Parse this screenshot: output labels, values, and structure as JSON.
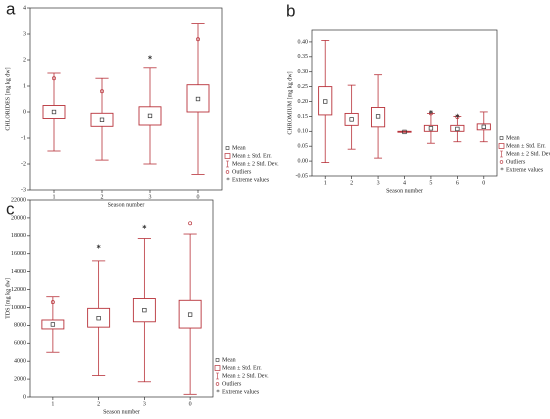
{
  "chart_data": [
    {
      "type": "box",
      "panel": "a",
      "ylabel": "CHLORIDES [mg kg dw]",
      "xlabel": "Season number",
      "categories": [
        "1",
        "2",
        "3",
        "0"
      ],
      "means": [
        0.0,
        -0.3,
        -0.15,
        0.5
      ],
      "box_low": [
        -0.25,
        -0.55,
        -0.5,
        0.0
      ],
      "box_high": [
        0.25,
        -0.05,
        0.2,
        1.05
      ],
      "whisker_low": [
        -1.5,
        -1.85,
        -2.0,
        -2.4
      ],
      "whisker_high": [
        1.5,
        1.3,
        1.7,
        3.4
      ],
      "outliers": [
        1.3,
        0.8,
        null,
        2.8
      ],
      "extremes": [
        null,
        null,
        2.1,
        null
      ],
      "ylim": [
        -3,
        4
      ],
      "yticks": [
        -3,
        -2,
        -1,
        0,
        1,
        2,
        3,
        4
      ],
      "color": "#b8323a",
      "legend": [
        "Mean",
        "Mean ± Std. Err.",
        "Mean ± 2 Std. Dev.",
        "Outliers",
        "Extreme values"
      ]
    },
    {
      "type": "box",
      "panel": "b",
      "ylabel": "CHROMIUM [mg kg dw]",
      "xlabel": "Season number",
      "categories": [
        "1",
        "2",
        "3",
        "4",
        "5",
        "6",
        "0"
      ],
      "means": [
        0.2,
        0.14,
        0.15,
        0.098,
        0.11,
        0.108,
        0.115
      ],
      "box_low": [
        0.155,
        0.12,
        0.115,
        0.097,
        0.1,
        0.1,
        0.105
      ],
      "box_high": [
        0.25,
        0.16,
        0.18,
        0.1,
        0.12,
        0.12,
        0.125
      ],
      "whisker_low": [
        -0.005,
        0.04,
        0.01,
        0.097,
        0.06,
        0.065,
        0.065
      ],
      "whisker_high": [
        0.405,
        0.255,
        0.29,
        0.1,
        0.16,
        0.15,
        0.165
      ],
      "outliers": [
        null,
        null,
        null,
        null,
        0.16,
        0.148,
        null
      ],
      "extremes": [
        null,
        null,
        null,
        null,
        0.165,
        0.152,
        null
      ],
      "ylim": [
        -0.05,
        0.44
      ],
      "yticks": [
        {
          "value": -0.05,
          "label": "-0.05"
        },
        {
          "value": 0,
          "label": "0.00"
        },
        {
          "value": 0.05,
          "label": "0.05"
        },
        {
          "value": 0.1,
          "label": "0.10"
        },
        {
          "value": 0.15,
          "label": "0.15"
        },
        {
          "value": 0.2,
          "label": "0.20"
        },
        {
          "value": 0.25,
          "label": "0.25"
        },
        {
          "value": 0.3,
          "label": "0.30"
        },
        {
          "value": 0.35,
          "label": "0.35"
        },
        {
          "value": 0.4,
          "label": "0.40"
        }
      ],
      "color": "#b8323a",
      "legend": [
        "Mean",
        "Mean ± Std. Err.",
        "Mean ± 2 Std. Dev.",
        "Outliers",
        "Extreme values"
      ]
    },
    {
      "type": "box",
      "panel": "c",
      "ylabel": "TDS [mg kg dw]",
      "xlabel": "Season number",
      "categories": [
        "1",
        "2",
        "3",
        "0"
      ],
      "means": [
        8100,
        8800,
        9700,
        9200
      ],
      "box_low": [
        7600,
        7800,
        8400,
        7700
      ],
      "box_high": [
        8600,
        9900,
        11000,
        10800
      ],
      "whisker_low": [
        5000,
        2400,
        1700,
        300
      ],
      "whisker_high": [
        11200,
        15200,
        17700,
        18200
      ],
      "outliers": [
        10600,
        null,
        null,
        19400
      ],
      "extremes": [
        null,
        16800,
        19000,
        null
      ],
      "ylim": [
        0,
        22000
      ],
      "yticks": [
        0,
        2000,
        4000,
        6000,
        8000,
        10000,
        12000,
        14000,
        16000,
        18000,
        20000,
        22000
      ],
      "color": "#b8323a",
      "legend": [
        "Mean",
        "Mean ± Std. Err.",
        "Mean ± 2 Std. Dev.",
        "Outliers",
        "Extreme values"
      ]
    }
  ]
}
